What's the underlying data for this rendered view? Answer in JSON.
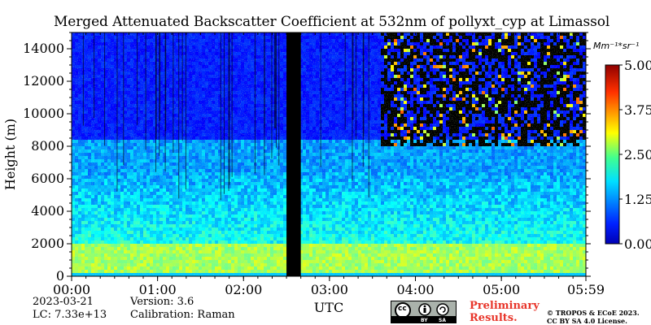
{
  "chart_data": {
    "type": "heatmap",
    "title": "Merged Attenuated Backscatter Coefficient at 532nm of pollyxt_cyp at Limassol",
    "xlabel": "UTC",
    "ylabel": "Height (m)",
    "xlim": [
      "00:00",
      "05:59"
    ],
    "ylim": [
      0,
      15000
    ],
    "x_ticks": [
      "00:00",
      "01:00",
      "02:00",
      "03:00",
      "04:00",
      "05:00",
      "05:59"
    ],
    "y_ticks": [
      "0",
      "2000",
      "4000",
      "6000",
      "8000",
      "10000",
      "12000",
      "14000"
    ],
    "colorbar": {
      "unit": "Mm⁻¹*sr⁻¹",
      "range": [
        0.0,
        5.0
      ],
      "ticks": [
        "0.00",
        "1.25",
        "2.50",
        "3.75",
        "5.00"
      ],
      "colormap": "jet"
    },
    "data_gap": {
      "start": "02:30",
      "end": "02:40"
    },
    "colors": {
      "gap": "#000000",
      "low": "#0a3ad8",
      "mid": "#1ea8c8",
      "high": "#dc1c10"
    }
  },
  "meta": {
    "date": "2023-03-21",
    "lc": "LC: 7.33e+13",
    "version": "Version: 3.6",
    "calibration": "Calibration: Raman",
    "preliminary_line1": "Preliminary",
    "preliminary_line2": "Results.",
    "copyright_line1": "© TROPOS & ECoE 2023.",
    "copyright_line2": "CC BY SA 4.0 License.",
    "cc_badge": {
      "cc": "cc",
      "by": "BY",
      "sa": "SA"
    }
  }
}
